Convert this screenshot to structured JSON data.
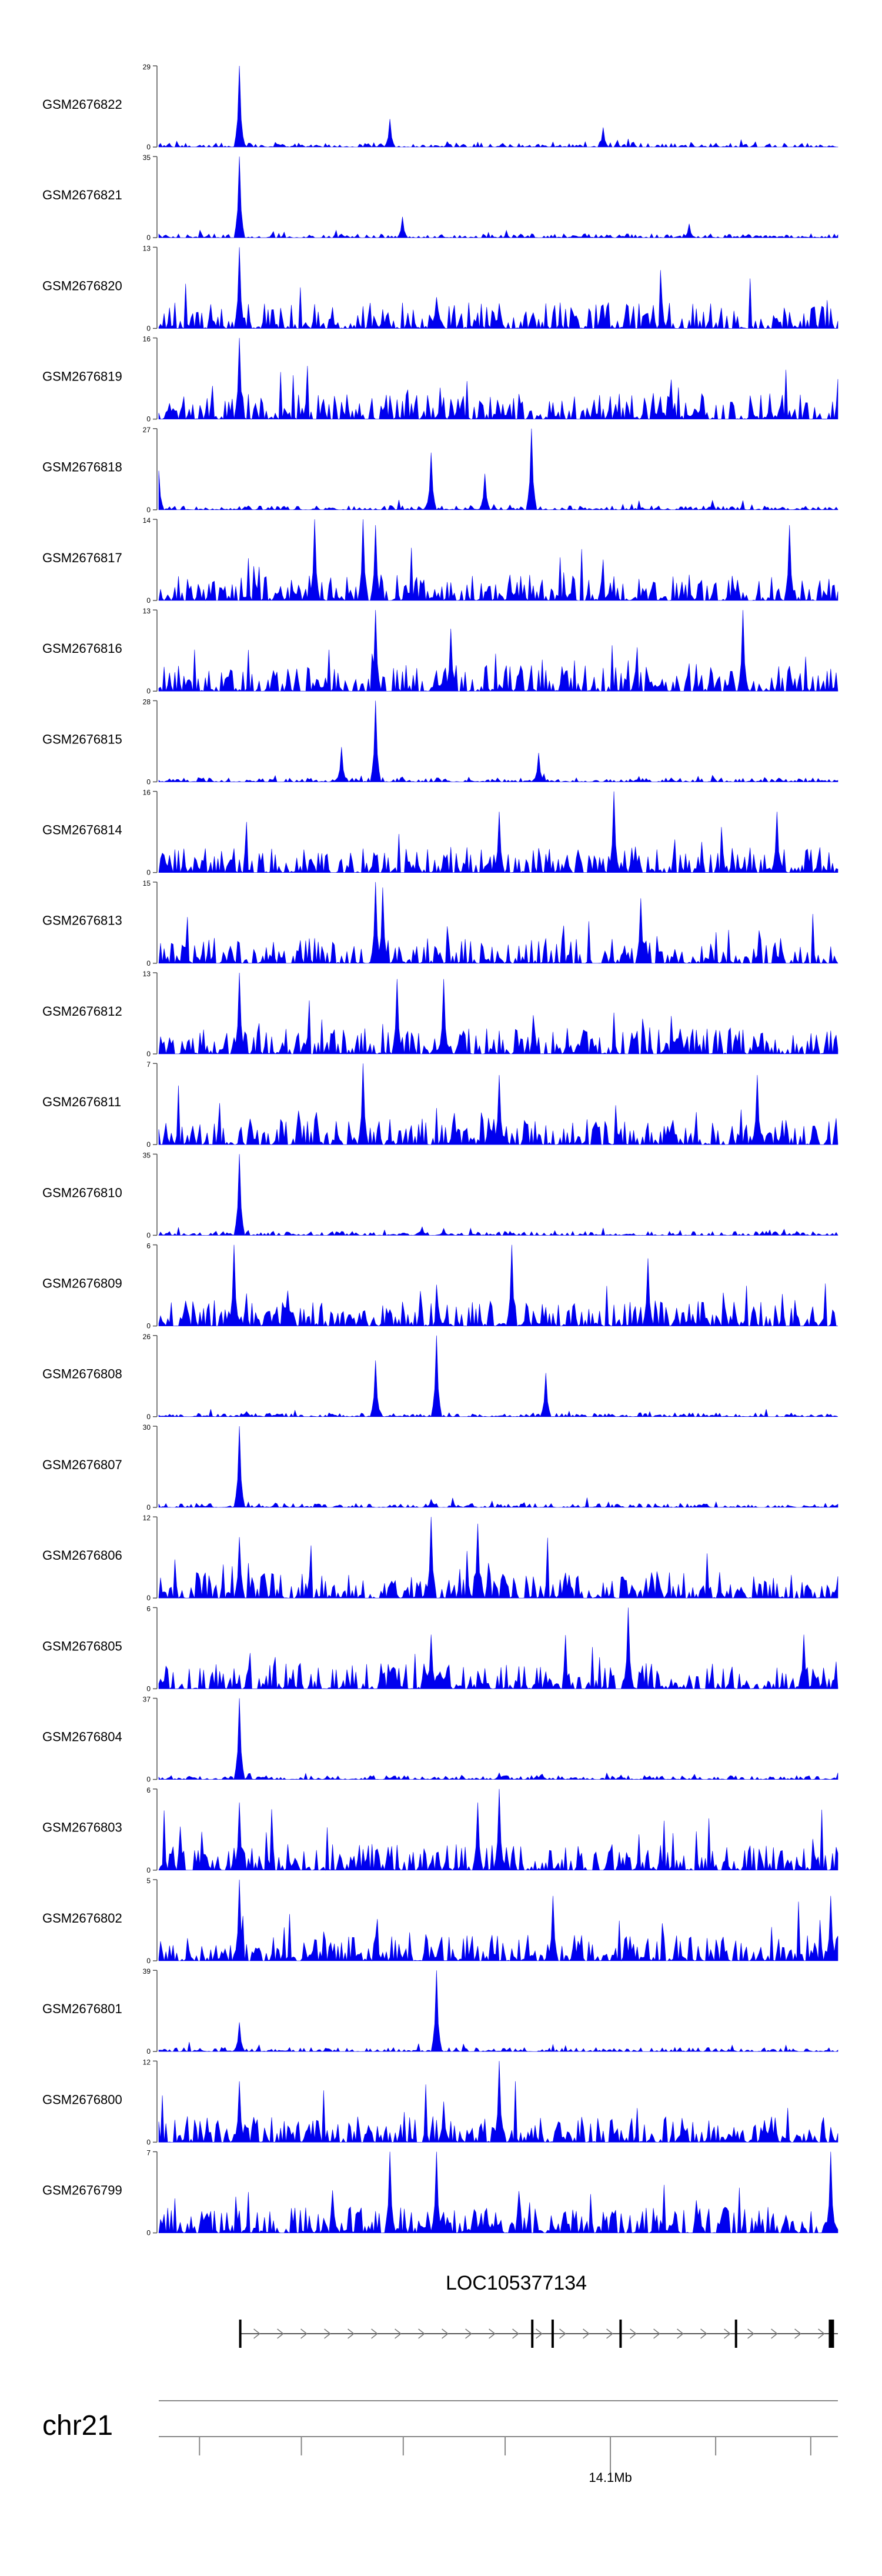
{
  "chart_data": {
    "type": "area",
    "title": "",
    "color": "#0000ee",
    "axis_color": "#555555",
    "tracks": [
      {
        "name": "GSM2676822",
        "ymax": "29",
        "ymin": "0",
        "max_value": 29,
        "peaks": [
          {
            "x": 0.12,
            "v": 29
          },
          {
            "x": 0.34,
            "v": 10
          },
          {
            "x": 0.655,
            "v": 7
          }
        ]
      },
      {
        "name": "GSM2676821",
        "ymax": "35",
        "ymin": "0",
        "max_value": 35,
        "peaks": [
          {
            "x": 0.12,
            "v": 35
          },
          {
            "x": 0.36,
            "v": 9
          },
          {
            "x": 0.78,
            "v": 6
          }
        ]
      },
      {
        "name": "GSM2676820",
        "ymax": "13",
        "ymin": "0",
        "max_value": 13,
        "peaks": [
          {
            "x": 0.12,
            "v": 13
          },
          {
            "x": 0.41,
            "v": 5
          },
          {
            "x": 0.5,
            "v": 4
          }
        ]
      },
      {
        "name": "GSM2676819",
        "ymax": "16",
        "ymin": "0",
        "max_value": 16,
        "peaks": [
          {
            "x": 0.12,
            "v": 16
          },
          {
            "x": 0.44,
            "v": 4
          },
          {
            "x": 0.8,
            "v": 5
          }
        ]
      },
      {
        "name": "GSM2676818",
        "ymax": "27",
        "ymin": "0",
        "max_value": 27,
        "peaks": [
          {
            "x": 0.0,
            "v": 13
          },
          {
            "x": 0.4,
            "v": 19
          },
          {
            "x": 0.55,
            "v": 27
          },
          {
            "x": 0.48,
            "v": 12
          }
        ]
      },
      {
        "name": "GSM2676817",
        "ymax": "14",
        "ymin": "0",
        "max_value": 14,
        "peaks": [
          {
            "x": 0.23,
            "v": 14
          },
          {
            "x": 0.3,
            "v": 14
          },
          {
            "x": 0.32,
            "v": 13
          },
          {
            "x": 0.93,
            "v": 13
          }
        ]
      },
      {
        "name": "GSM2676816",
        "ymax": "13",
        "ymin": "0",
        "max_value": 13,
        "peaks": [
          {
            "x": 0.32,
            "v": 13
          },
          {
            "x": 0.43,
            "v": 10
          },
          {
            "x": 0.86,
            "v": 13
          }
        ]
      },
      {
        "name": "GSM2676815",
        "ymax": "28",
        "ymin": "0",
        "max_value": 28,
        "peaks": [
          {
            "x": 0.32,
            "v": 28
          },
          {
            "x": 0.27,
            "v": 12
          },
          {
            "x": 0.56,
            "v": 10
          }
        ]
      },
      {
        "name": "GSM2676814",
        "ymax": "16",
        "ymin": "0",
        "max_value": 16,
        "peaks": [
          {
            "x": 0.67,
            "v": 16
          },
          {
            "x": 0.5,
            "v": 12
          },
          {
            "x": 0.91,
            "v": 12
          }
        ]
      },
      {
        "name": "GSM2676813",
        "ymax": "15",
        "ymin": "0",
        "max_value": 15,
        "peaks": [
          {
            "x": 0.32,
            "v": 15
          },
          {
            "x": 0.33,
            "v": 14
          },
          {
            "x": 0.71,
            "v": 12
          }
        ]
      },
      {
        "name": "GSM2676812",
        "ymax": "13",
        "ymin": "0",
        "max_value": 13,
        "peaks": [
          {
            "x": 0.12,
            "v": 13
          },
          {
            "x": 0.35,
            "v": 12
          },
          {
            "x": 0.42,
            "v": 12
          }
        ]
      },
      {
        "name": "GSM2676811",
        "ymax": "7",
        "ymin": "0",
        "max_value": 7,
        "peaks": [
          {
            "x": 0.3,
            "v": 7
          },
          {
            "x": 0.5,
            "v": 6
          },
          {
            "x": 0.88,
            "v": 6
          }
        ]
      },
      {
        "name": "GSM2676810",
        "ymax": "35",
        "ymin": "0",
        "max_value": 35,
        "peaks": [
          {
            "x": 0.12,
            "v": 35
          },
          {
            "x": 0.42,
            "v": 3
          }
        ]
      },
      {
        "name": "GSM2676809",
        "ymax": "6",
        "ymin": "0",
        "max_value": 6,
        "peaks": [
          {
            "x": 0.11,
            "v": 6
          },
          {
            "x": 0.52,
            "v": 6
          },
          {
            "x": 0.72,
            "v": 5
          }
        ]
      },
      {
        "name": "GSM2676808",
        "ymax": "26",
        "ymin": "0",
        "max_value": 26,
        "peaks": [
          {
            "x": 0.41,
            "v": 26
          },
          {
            "x": 0.32,
            "v": 18
          },
          {
            "x": 0.57,
            "v": 14
          }
        ]
      },
      {
        "name": "GSM2676807",
        "ymax": "30",
        "ymin": "0",
        "max_value": 30,
        "peaks": [
          {
            "x": 0.12,
            "v": 30
          },
          {
            "x": 0.4,
            "v": 3
          }
        ]
      },
      {
        "name": "GSM2676806",
        "ymax": "12",
        "ymin": "0",
        "max_value": 12,
        "peaks": [
          {
            "x": 0.4,
            "v": 12
          },
          {
            "x": 0.47,
            "v": 11
          },
          {
            "x": 0.12,
            "v": 9
          }
        ]
      },
      {
        "name": "GSM2676805",
        "ymax": "6",
        "ymin": "0",
        "max_value": 6,
        "peaks": [
          {
            "x": 0.69,
            "v": 6
          },
          {
            "x": 0.4,
            "v": 4
          },
          {
            "x": 0.95,
            "v": 4
          }
        ]
      },
      {
        "name": "GSM2676804",
        "ymax": "37",
        "ymin": "0",
        "max_value": 37,
        "peaks": [
          {
            "x": 0.12,
            "v": 37
          },
          {
            "x": 0.5,
            "v": 3
          }
        ]
      },
      {
        "name": "GSM2676803",
        "ymax": "6",
        "ymin": "0",
        "max_value": 6,
        "peaks": [
          {
            "x": 0.5,
            "v": 6
          },
          {
            "x": 0.47,
            "v": 5
          },
          {
            "x": 0.12,
            "v": 5
          }
        ]
      },
      {
        "name": "GSM2676802",
        "ymax": "5",
        "ymin": "0",
        "max_value": 5,
        "peaks": [
          {
            "x": 0.12,
            "v": 5
          },
          {
            "x": 0.58,
            "v": 4
          },
          {
            "x": 0.99,
            "v": 4
          }
        ]
      },
      {
        "name": "GSM2676801",
        "ymax": "39",
        "ymin": "0",
        "max_value": 39,
        "peaks": [
          {
            "x": 0.41,
            "v": 39
          },
          {
            "x": 0.12,
            "v": 14
          }
        ]
      },
      {
        "name": "GSM2676800",
        "ymax": "12",
        "ymin": "0",
        "max_value": 12,
        "peaks": [
          {
            "x": 0.5,
            "v": 12
          },
          {
            "x": 0.12,
            "v": 9
          },
          {
            "x": 0.42,
            "v": 6
          }
        ]
      },
      {
        "name": "GSM2676799",
        "ymax": "7",
        "ymin": "0",
        "max_value": 7,
        "peaks": [
          {
            "x": 0.41,
            "v": 7
          },
          {
            "x": 0.34,
            "v": 7
          },
          {
            "x": 0.99,
            "v": 7
          }
        ]
      }
    ],
    "gene": {
      "name": "LOC105377134",
      "strand": "+",
      "start_fraction": 0.12,
      "end_fraction": 1.0,
      "exon_fractions": [
        0.12,
        0.55,
        0.58,
        0.68,
        0.85,
        0.99
      ]
    },
    "chromosome": {
      "name": "chr21",
      "tick_label": "14.1Mb",
      "tick_label_fraction": 0.665,
      "minor_tick_fractions": [
        0.06,
        0.21,
        0.36,
        0.51,
        0.82,
        0.96
      ]
    }
  }
}
